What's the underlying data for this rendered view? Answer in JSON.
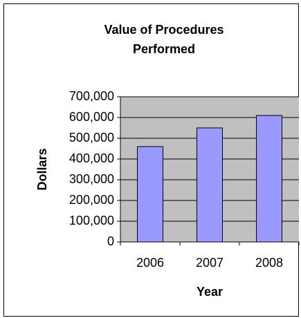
{
  "chart_data": {
    "type": "bar",
    "title": "Value of Procedures Performed",
    "x_label": "Year",
    "y_label": "Dollars",
    "categories": [
      "2006",
      "2007",
      "2008"
    ],
    "values": [
      460000,
      550000,
      610000
    ],
    "color": "#9999ff",
    "ylim": [
      0,
      700000
    ],
    "yticks": [
      0,
      {
        "value": 100000,
        "label": "100,000"
      },
      {
        "value": 200000,
        "label": "200,000"
      },
      {
        "value": 300000,
        "label": "300,000"
      },
      {
        "value": 400000,
        "label": "400,000"
      },
      {
        "value": 500000,
        "label": "500,000"
      },
      {
        "value": 600000,
        "label": "600,000"
      },
      {
        "value": 700000,
        "label": "700,000"
      }
    ],
    "grid": true
  }
}
